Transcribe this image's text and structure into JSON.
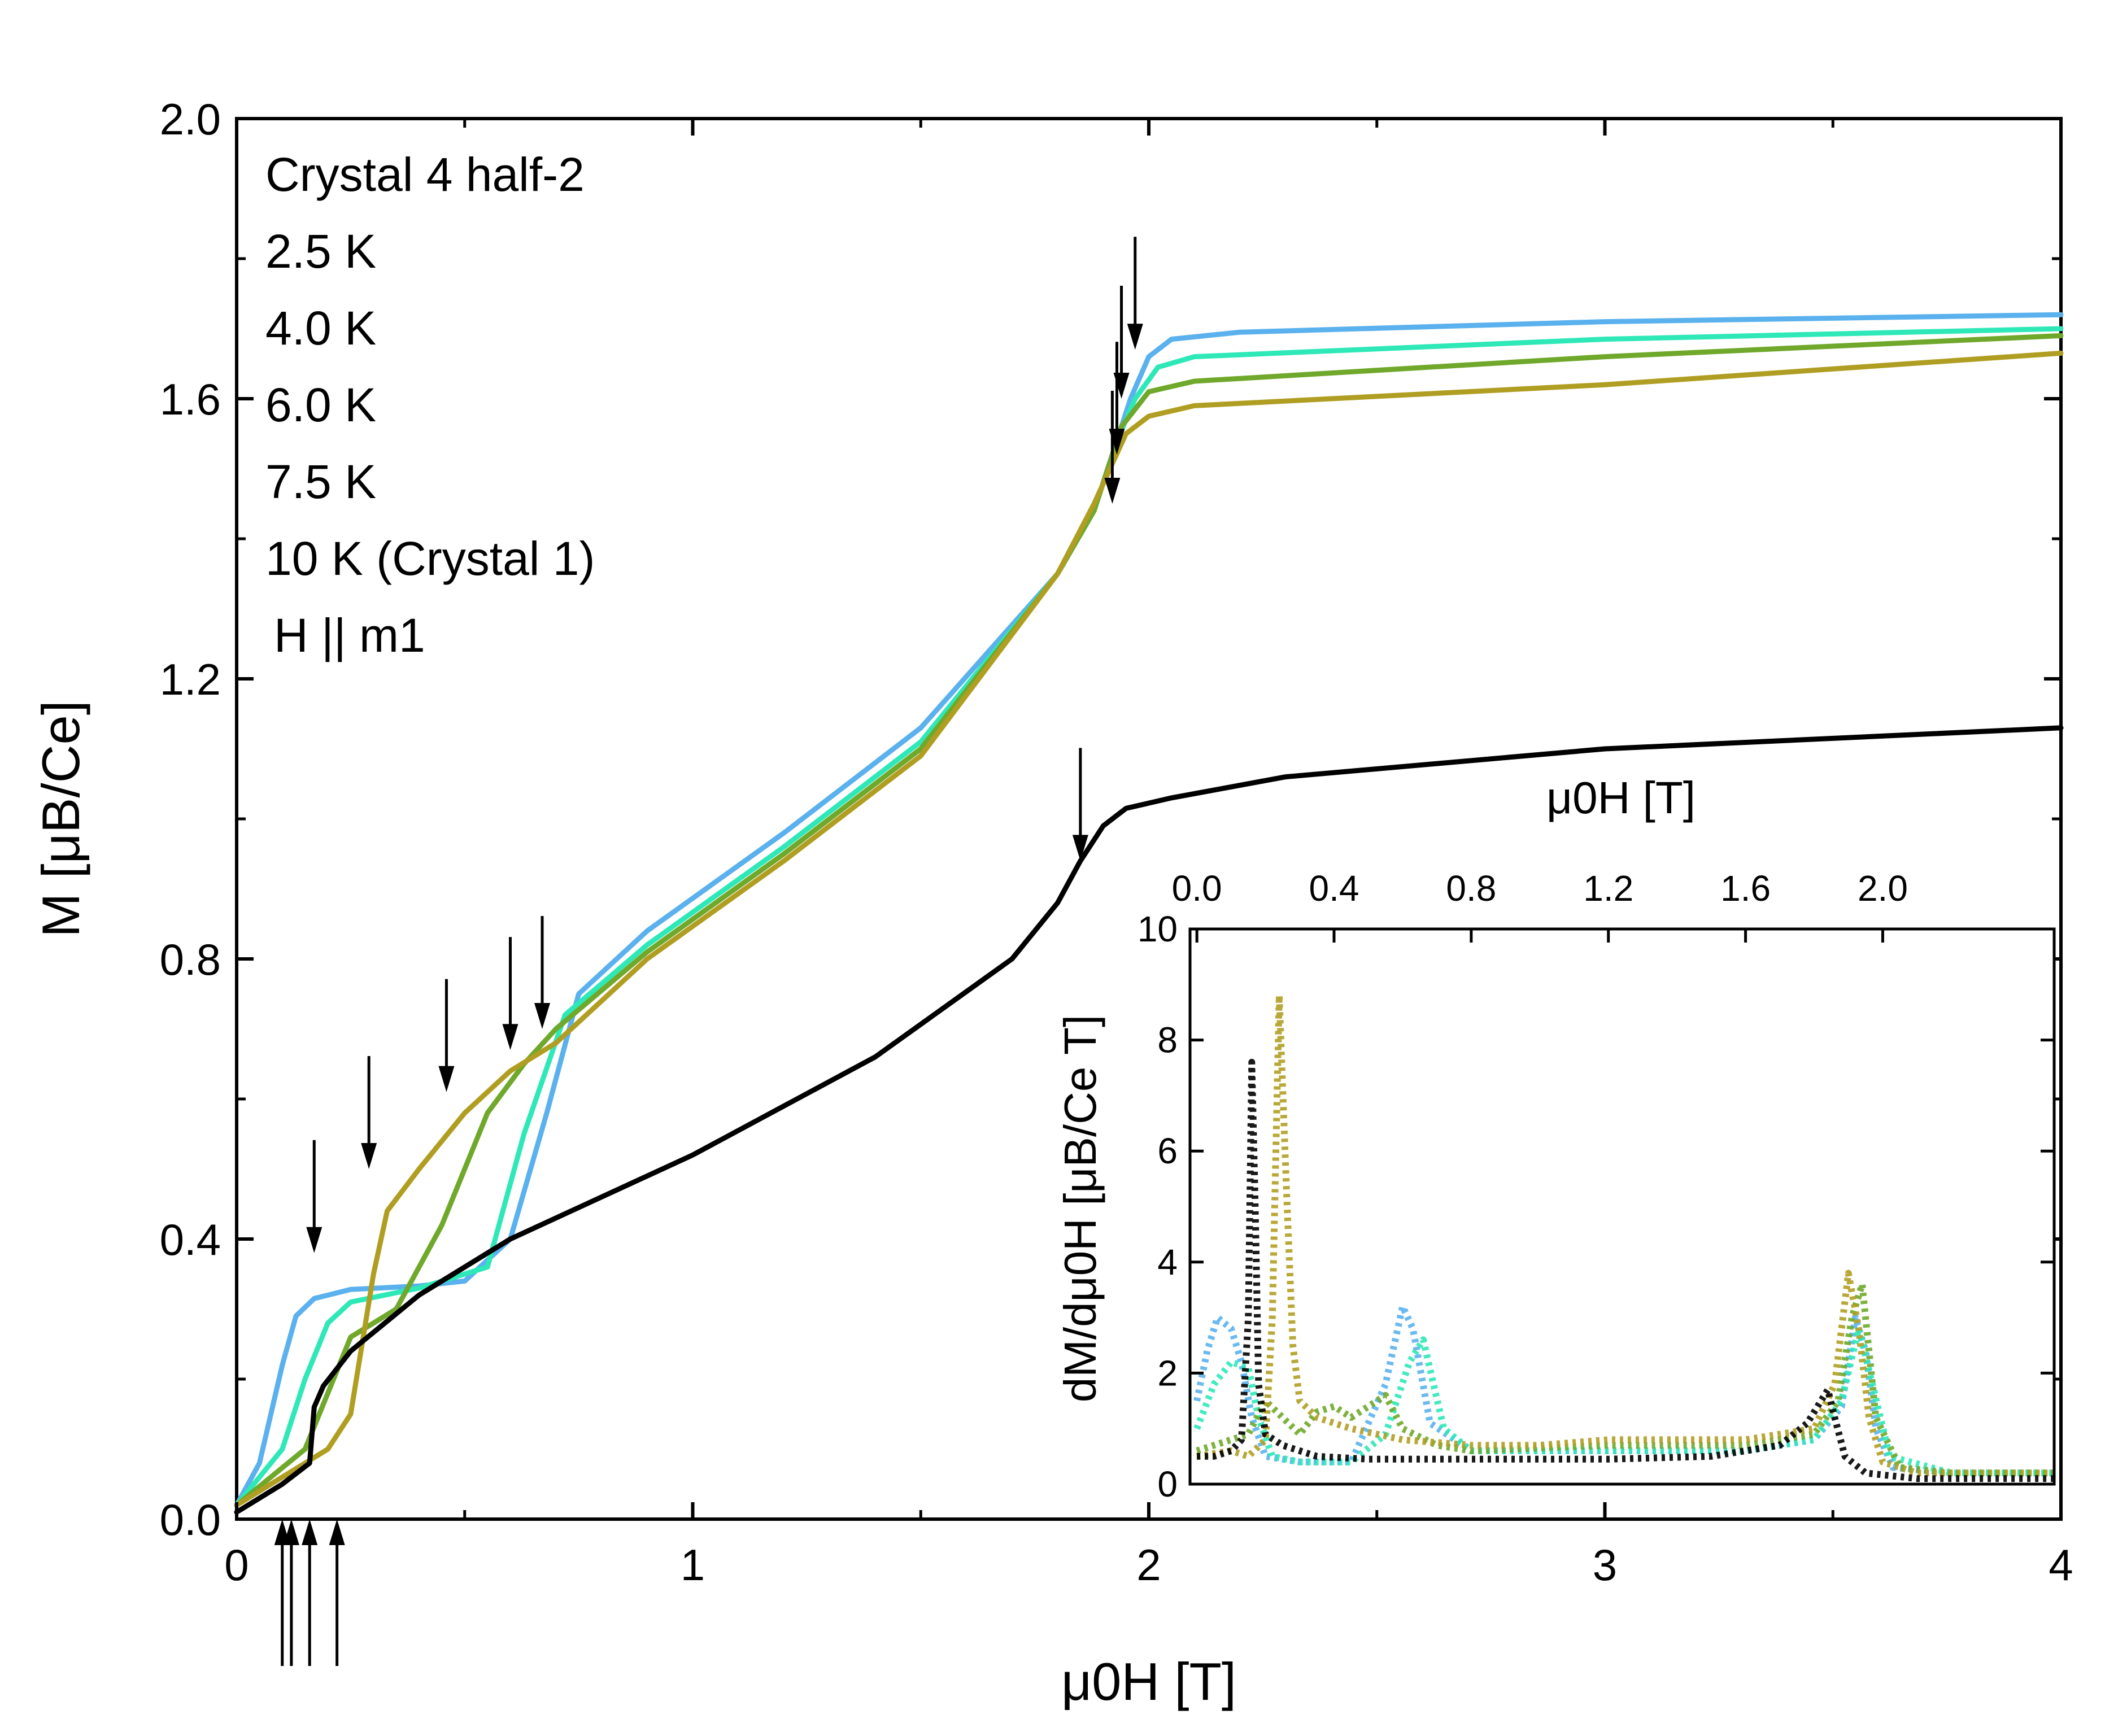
{
  "chart_data": [
    {
      "id": "main",
      "type": "line",
      "xlabel": "μ0H [T]",
      "ylabel": "M [μB/Ce]",
      "xlim": [
        0,
        4
      ],
      "ylim": [
        0,
        2
      ],
      "xticks": [
        0,
        1,
        2,
        3,
        4
      ],
      "xtick_labels": [
        "0",
        "1",
        "2",
        "3",
        "4"
      ],
      "yticks": [
        0.0,
        0.4,
        0.8,
        1.2,
        1.6,
        2.0
      ],
      "ytick_labels": [
        "0.0",
        "0.4",
        "0.8",
        "1.2",
        "1.6",
        "2.0"
      ],
      "legend": {
        "header": "Crystal 4 half-2",
        "footer": "H || m1"
      },
      "series": [
        {
          "name": "2.5 K",
          "color": "#5ab1ee",
          "x": [
            0,
            0.05,
            0.1,
            0.13,
            0.17,
            0.25,
            0.4,
            0.5,
            0.6,
            0.68,
            0.75,
            0.9,
            1.2,
            1.5,
            1.8,
            1.88,
            1.92,
            1.96,
            2.0,
            2.05,
            2.2,
            3.0,
            4.0
          ],
          "values": [
            0.02,
            0.08,
            0.22,
            0.29,
            0.315,
            0.328,
            0.333,
            0.34,
            0.4,
            0.58,
            0.75,
            0.84,
            0.98,
            1.13,
            1.35,
            1.44,
            1.52,
            1.6,
            1.66,
            1.685,
            1.695,
            1.71,
            1.72
          ]
        },
        {
          "name": "4.0 K",
          "color": "#2ee8b8",
          "x": [
            0,
            0.1,
            0.15,
            0.2,
            0.25,
            0.4,
            0.55,
            0.63,
            0.72,
            0.9,
            1.2,
            1.5,
            1.8,
            1.88,
            1.93,
            1.97,
            2.02,
            2.1,
            3.0,
            4.0
          ],
          "values": [
            0.02,
            0.1,
            0.2,
            0.28,
            0.31,
            0.33,
            0.36,
            0.55,
            0.72,
            0.82,
            0.96,
            1.11,
            1.35,
            1.44,
            1.54,
            1.6,
            1.645,
            1.66,
            1.685,
            1.7
          ]
        },
        {
          "name": "6.0 K",
          "color": "#6fa82a",
          "x": [
            0,
            0.15,
            0.2,
            0.25,
            0.35,
            0.45,
            0.55,
            0.63,
            0.7,
            0.9,
            1.2,
            1.5,
            1.8,
            1.88,
            1.94,
            2.0,
            2.1,
            3.0,
            4.0
          ],
          "values": [
            0.02,
            0.1,
            0.18,
            0.26,
            0.3,
            0.42,
            0.58,
            0.65,
            0.7,
            0.81,
            0.95,
            1.1,
            1.35,
            1.44,
            1.56,
            1.61,
            1.625,
            1.66,
            1.69
          ]
        },
        {
          "name": "7.5 K",
          "color": "#b09e22",
          "x": [
            0,
            0.15,
            0.2,
            0.25,
            0.3,
            0.33,
            0.4,
            0.5,
            0.6,
            0.7,
            0.9,
            1.2,
            1.5,
            1.8,
            1.88,
            1.95,
            2.0,
            2.1,
            3.0,
            4.0
          ],
          "values": [
            0.02,
            0.08,
            0.1,
            0.15,
            0.35,
            0.44,
            0.5,
            0.58,
            0.64,
            0.68,
            0.8,
            0.94,
            1.09,
            1.35,
            1.45,
            1.55,
            1.575,
            1.59,
            1.62,
            1.665
          ]
        },
        {
          "name": "10 K (Crystal 1)",
          "color": "#000000",
          "x": [
            0,
            0.1,
            0.16,
            0.17,
            0.19,
            0.25,
            0.4,
            0.6,
            1.0,
            1.4,
            1.7,
            1.8,
            1.85,
            1.9,
            1.95,
            2.05,
            2.3,
            3.0,
            4.0
          ],
          "values": [
            0.01,
            0.05,
            0.08,
            0.16,
            0.19,
            0.24,
            0.32,
            0.4,
            0.52,
            0.66,
            0.8,
            0.88,
            0.94,
            0.99,
            1.015,
            1.03,
            1.06,
            1.1,
            1.13
          ]
        }
      ],
      "annotations": {
        "down_arrows_x": [
          0.17,
          0.29,
          0.46,
          0.6,
          0.67,
          1.85,
          1.92,
          1.93,
          1.94,
          1.97
        ],
        "down_arrows_tip_y": [
          0.38,
          0.5,
          0.61,
          0.67,
          0.7,
          0.94,
          1.45,
          1.52,
          1.6,
          1.67
        ],
        "up_arrows_x": [
          0.1,
          0.12,
          0.16,
          0.22
        ],
        "up_arrows_tip_y": [
          0.0,
          0.0,
          0.0,
          0.0
        ]
      }
    },
    {
      "id": "inset",
      "type": "scatter",
      "xlabel": "μ0H [T]",
      "ylabel": "dM/dμ0H [μB/Ce T]",
      "xlim": [
        -0.02,
        2.5
      ],
      "ylim": [
        0,
        10
      ],
      "xticks": [
        0.0,
        0.4,
        0.8,
        1.2,
        1.6,
        2.0
      ],
      "xtick_labels": [
        "0.0",
        "0.4",
        "0.8",
        "1.2",
        "1.6",
        "2.0"
      ],
      "yticks": [
        0,
        2,
        4,
        6,
        8,
        10
      ],
      "ytick_labels": [
        "0",
        "2",
        "4",
        "6",
        "8",
        "10"
      ],
      "series": [
        {
          "name": "2.5 K",
          "color": "#5ab1ee",
          "x": [
            0.0,
            0.03,
            0.06,
            0.1,
            0.13,
            0.16,
            0.2,
            0.3,
            0.45,
            0.55,
            0.6,
            0.63,
            0.68,
            0.8,
            1.2,
            1.6,
            1.8,
            1.88,
            1.92,
            1.95,
            1.98,
            2.03,
            2.2,
            2.5
          ],
          "values": [
            1.5,
            2.4,
            3.0,
            2.8,
            2.2,
            1.2,
            0.5,
            0.4,
            0.4,
            1.8,
            3.2,
            2.8,
            1.1,
            0.6,
            0.6,
            0.6,
            0.8,
            1.4,
            3.0,
            2.4,
            1.0,
            0.3,
            0.2,
            0.2
          ]
        },
        {
          "name": "4.0 K",
          "color": "#2ee8b8",
          "x": [
            0.0,
            0.05,
            0.1,
            0.15,
            0.18,
            0.22,
            0.3,
            0.45,
            0.55,
            0.62,
            0.66,
            0.72,
            0.8,
            1.2,
            1.6,
            1.8,
            1.88,
            1.93,
            1.97,
            2.02,
            2.2,
            2.5
          ],
          "values": [
            1.0,
            1.8,
            2.2,
            2.1,
            1.2,
            0.5,
            0.4,
            0.4,
            0.9,
            2.2,
            2.6,
            1.0,
            0.6,
            0.6,
            0.6,
            0.8,
            1.5,
            2.8,
            1.8,
            0.5,
            0.2,
            0.2
          ]
        },
        {
          "name": "6.0 K",
          "color": "#6fa82a",
          "x": [
            0.0,
            0.1,
            0.15,
            0.2,
            0.25,
            0.3,
            0.35,
            0.4,
            0.45,
            0.5,
            0.55,
            0.6,
            0.7,
            0.8,
            1.2,
            1.6,
            1.8,
            1.87,
            1.91,
            1.94,
            1.98,
            2.05,
            2.2,
            2.5
          ],
          "values": [
            0.6,
            0.8,
            0.9,
            1.5,
            1.2,
            0.9,
            1.3,
            1.4,
            1.2,
            1.4,
            1.6,
            1.0,
            0.7,
            0.6,
            0.7,
            0.7,
            0.9,
            1.5,
            3.0,
            3.6,
            1.2,
            0.3,
            0.2,
            0.2
          ]
        },
        {
          "name": "7.5 K",
          "color": "#b09e22",
          "x": [
            0.0,
            0.1,
            0.15,
            0.2,
            0.22,
            0.24,
            0.26,
            0.28,
            0.3,
            0.35,
            0.45,
            0.6,
            0.8,
            1.0,
            1.2,
            1.4,
            1.6,
            1.8,
            1.86,
            1.9,
            1.93,
            1.96,
            2.0,
            2.1,
            2.5
          ],
          "values": [
            0.5,
            0.6,
            0.5,
            0.8,
            3.0,
            8.8,
            5.5,
            2.5,
            1.5,
            1.2,
            1.0,
            0.8,
            0.7,
            0.7,
            0.8,
            0.8,
            0.8,
            1.0,
            1.8,
            3.8,
            2.8,
            1.2,
            0.4,
            0.2,
            0.2
          ]
        },
        {
          "name": "10 K (Crystal 1)",
          "color": "#000000",
          "x": [
            0.0,
            0.05,
            0.1,
            0.13,
            0.15,
            0.16,
            0.17,
            0.18,
            0.2,
            0.25,
            0.35,
            0.5,
            0.8,
            1.2,
            1.5,
            1.7,
            1.78,
            1.82,
            1.84,
            1.86,
            1.89,
            1.95,
            2.1,
            2.5
          ],
          "values": [
            0.5,
            0.5,
            0.6,
            0.8,
            3.0,
            7.6,
            5.0,
            1.8,
            0.9,
            0.7,
            0.5,
            0.45,
            0.45,
            0.45,
            0.5,
            0.7,
            1.1,
            1.5,
            1.7,
            1.2,
            0.5,
            0.2,
            0.1,
            0.1
          ]
        }
      ]
    }
  ]
}
